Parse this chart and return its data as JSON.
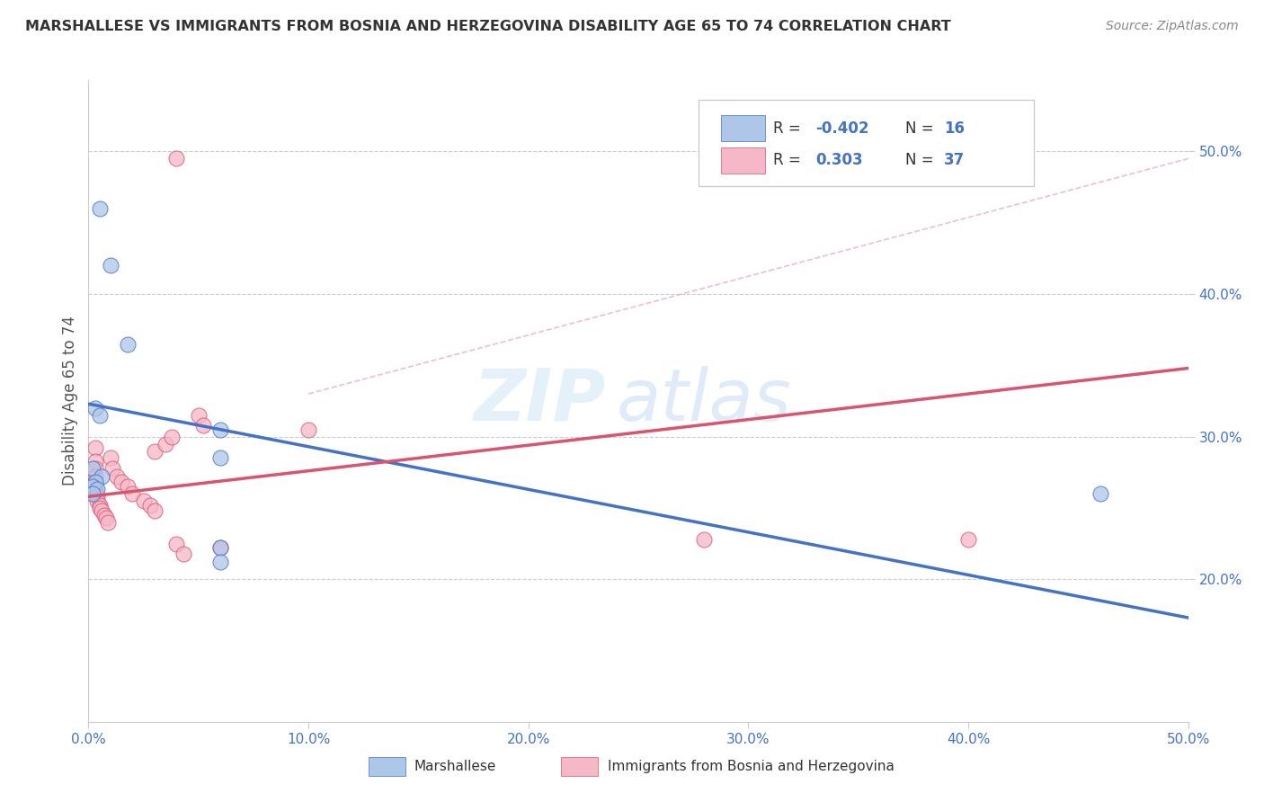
{
  "title": "MARSHALLESE VS IMMIGRANTS FROM BOSNIA AND HERZEGOVINA DISABILITY AGE 65 TO 74 CORRELATION CHART",
  "source": "Source: ZipAtlas.com",
  "ylabel": "Disability Age 65 to 74",
  "xlim": [
    0.0,
    0.5
  ],
  "ylim": [
    0.1,
    0.55
  ],
  "xticks": [
    0.0,
    0.1,
    0.2,
    0.3,
    0.4,
    0.5
  ],
  "xtick_labels": [
    "0.0%",
    "10.0%",
    "20.0%",
    "30.0%",
    "40.0%",
    "50.0%"
  ],
  "yticks": [
    0.2,
    0.3,
    0.4,
    0.5
  ],
  "ytick_labels": [
    "20.0%",
    "30.0%",
    "40.0%",
    "50.0%"
  ],
  "blue_color": "#aec6e8",
  "pink_color": "#f5b8c8",
  "blue_line_color": "#4472c4",
  "pink_line_color": "#d9546e",
  "blue_scatter": [
    [
      0.005,
      0.46
    ],
    [
      0.01,
      0.42
    ],
    [
      0.018,
      0.365
    ],
    [
      0.003,
      0.32
    ],
    [
      0.005,
      0.315
    ],
    [
      0.002,
      0.278
    ],
    [
      0.006,
      0.272
    ],
    [
      0.003,
      0.268
    ],
    [
      0.002,
      0.265
    ],
    [
      0.004,
      0.263
    ],
    [
      0.002,
      0.26
    ],
    [
      0.06,
      0.305
    ],
    [
      0.06,
      0.285
    ],
    [
      0.06,
      0.222
    ],
    [
      0.06,
      0.212
    ],
    [
      0.46,
      0.26
    ]
  ],
  "pink_scatter": [
    [
      0.04,
      0.495
    ],
    [
      0.003,
      0.292
    ],
    [
      0.003,
      0.283
    ],
    [
      0.003,
      0.278
    ],
    [
      0.003,
      0.272
    ],
    [
      0.003,
      0.268
    ],
    [
      0.003,
      0.265
    ],
    [
      0.003,
      0.262
    ],
    [
      0.003,
      0.26
    ],
    [
      0.004,
      0.258
    ],
    [
      0.004,
      0.255
    ],
    [
      0.005,
      0.252
    ],
    [
      0.005,
      0.25
    ],
    [
      0.006,
      0.248
    ],
    [
      0.007,
      0.245
    ],
    [
      0.008,
      0.243
    ],
    [
      0.009,
      0.24
    ],
    [
      0.01,
      0.285
    ],
    [
      0.011,
      0.278
    ],
    [
      0.013,
      0.272
    ],
    [
      0.015,
      0.268
    ],
    [
      0.018,
      0.265
    ],
    [
      0.02,
      0.26
    ],
    [
      0.025,
      0.255
    ],
    [
      0.028,
      0.252
    ],
    [
      0.03,
      0.248
    ],
    [
      0.03,
      0.29
    ],
    [
      0.035,
      0.295
    ],
    [
      0.038,
      0.3
    ],
    [
      0.04,
      0.225
    ],
    [
      0.043,
      0.218
    ],
    [
      0.05,
      0.315
    ],
    [
      0.052,
      0.308
    ],
    [
      0.06,
      0.222
    ],
    [
      0.1,
      0.305
    ],
    [
      0.28,
      0.228
    ],
    [
      0.4,
      0.228
    ]
  ],
  "blue_line_x": [
    0.0,
    0.5
  ],
  "blue_line_y": [
    0.323,
    0.173
  ],
  "pink_line_x": [
    0.0,
    0.5
  ],
  "pink_line_y": [
    0.258,
    0.348
  ],
  "ref_line_x": [
    0.1,
    0.5
  ],
  "ref_line_y": [
    0.33,
    0.495
  ],
  "watermark_zip": "ZIP",
  "watermark_atlas": "atlas",
  "background_color": "#ffffff"
}
